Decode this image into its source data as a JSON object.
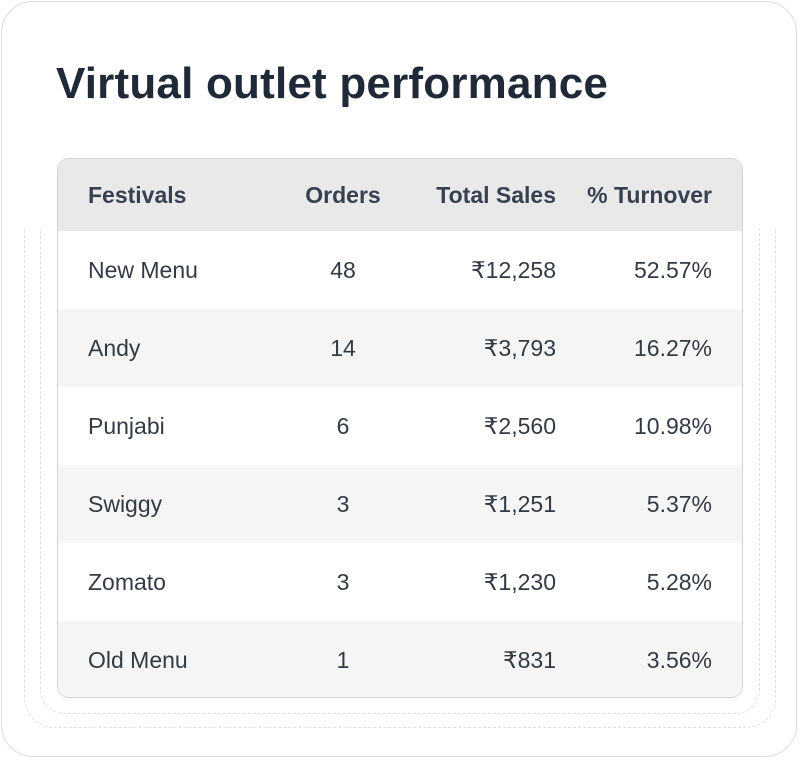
{
  "title": "Virtual outlet performance",
  "table": {
    "columns": [
      "Festivals",
      "Orders",
      "Total Sales",
      "% Turnover"
    ],
    "rows": [
      {
        "festival": "New Menu",
        "orders": "48",
        "total_sales": "₹12,258",
        "turnover": "52.57%"
      },
      {
        "festival": "Andy",
        "orders": "14",
        "total_sales": "₹3,793",
        "turnover": "16.27%"
      },
      {
        "festival": "Punjabi",
        "orders": "6",
        "total_sales": "₹2,560",
        "turnover": "10.98%"
      },
      {
        "festival": "Swiggy",
        "orders": "3",
        "total_sales": "₹1,251",
        "turnover": "5.37%"
      },
      {
        "festival": "Zomato",
        "orders": "3",
        "total_sales": "₹1,230",
        "turnover": "5.28%"
      },
      {
        "festival": "Old Menu",
        "orders": "1",
        "total_sales": "₹831",
        "turnover": "3.56%"
      }
    ]
  }
}
